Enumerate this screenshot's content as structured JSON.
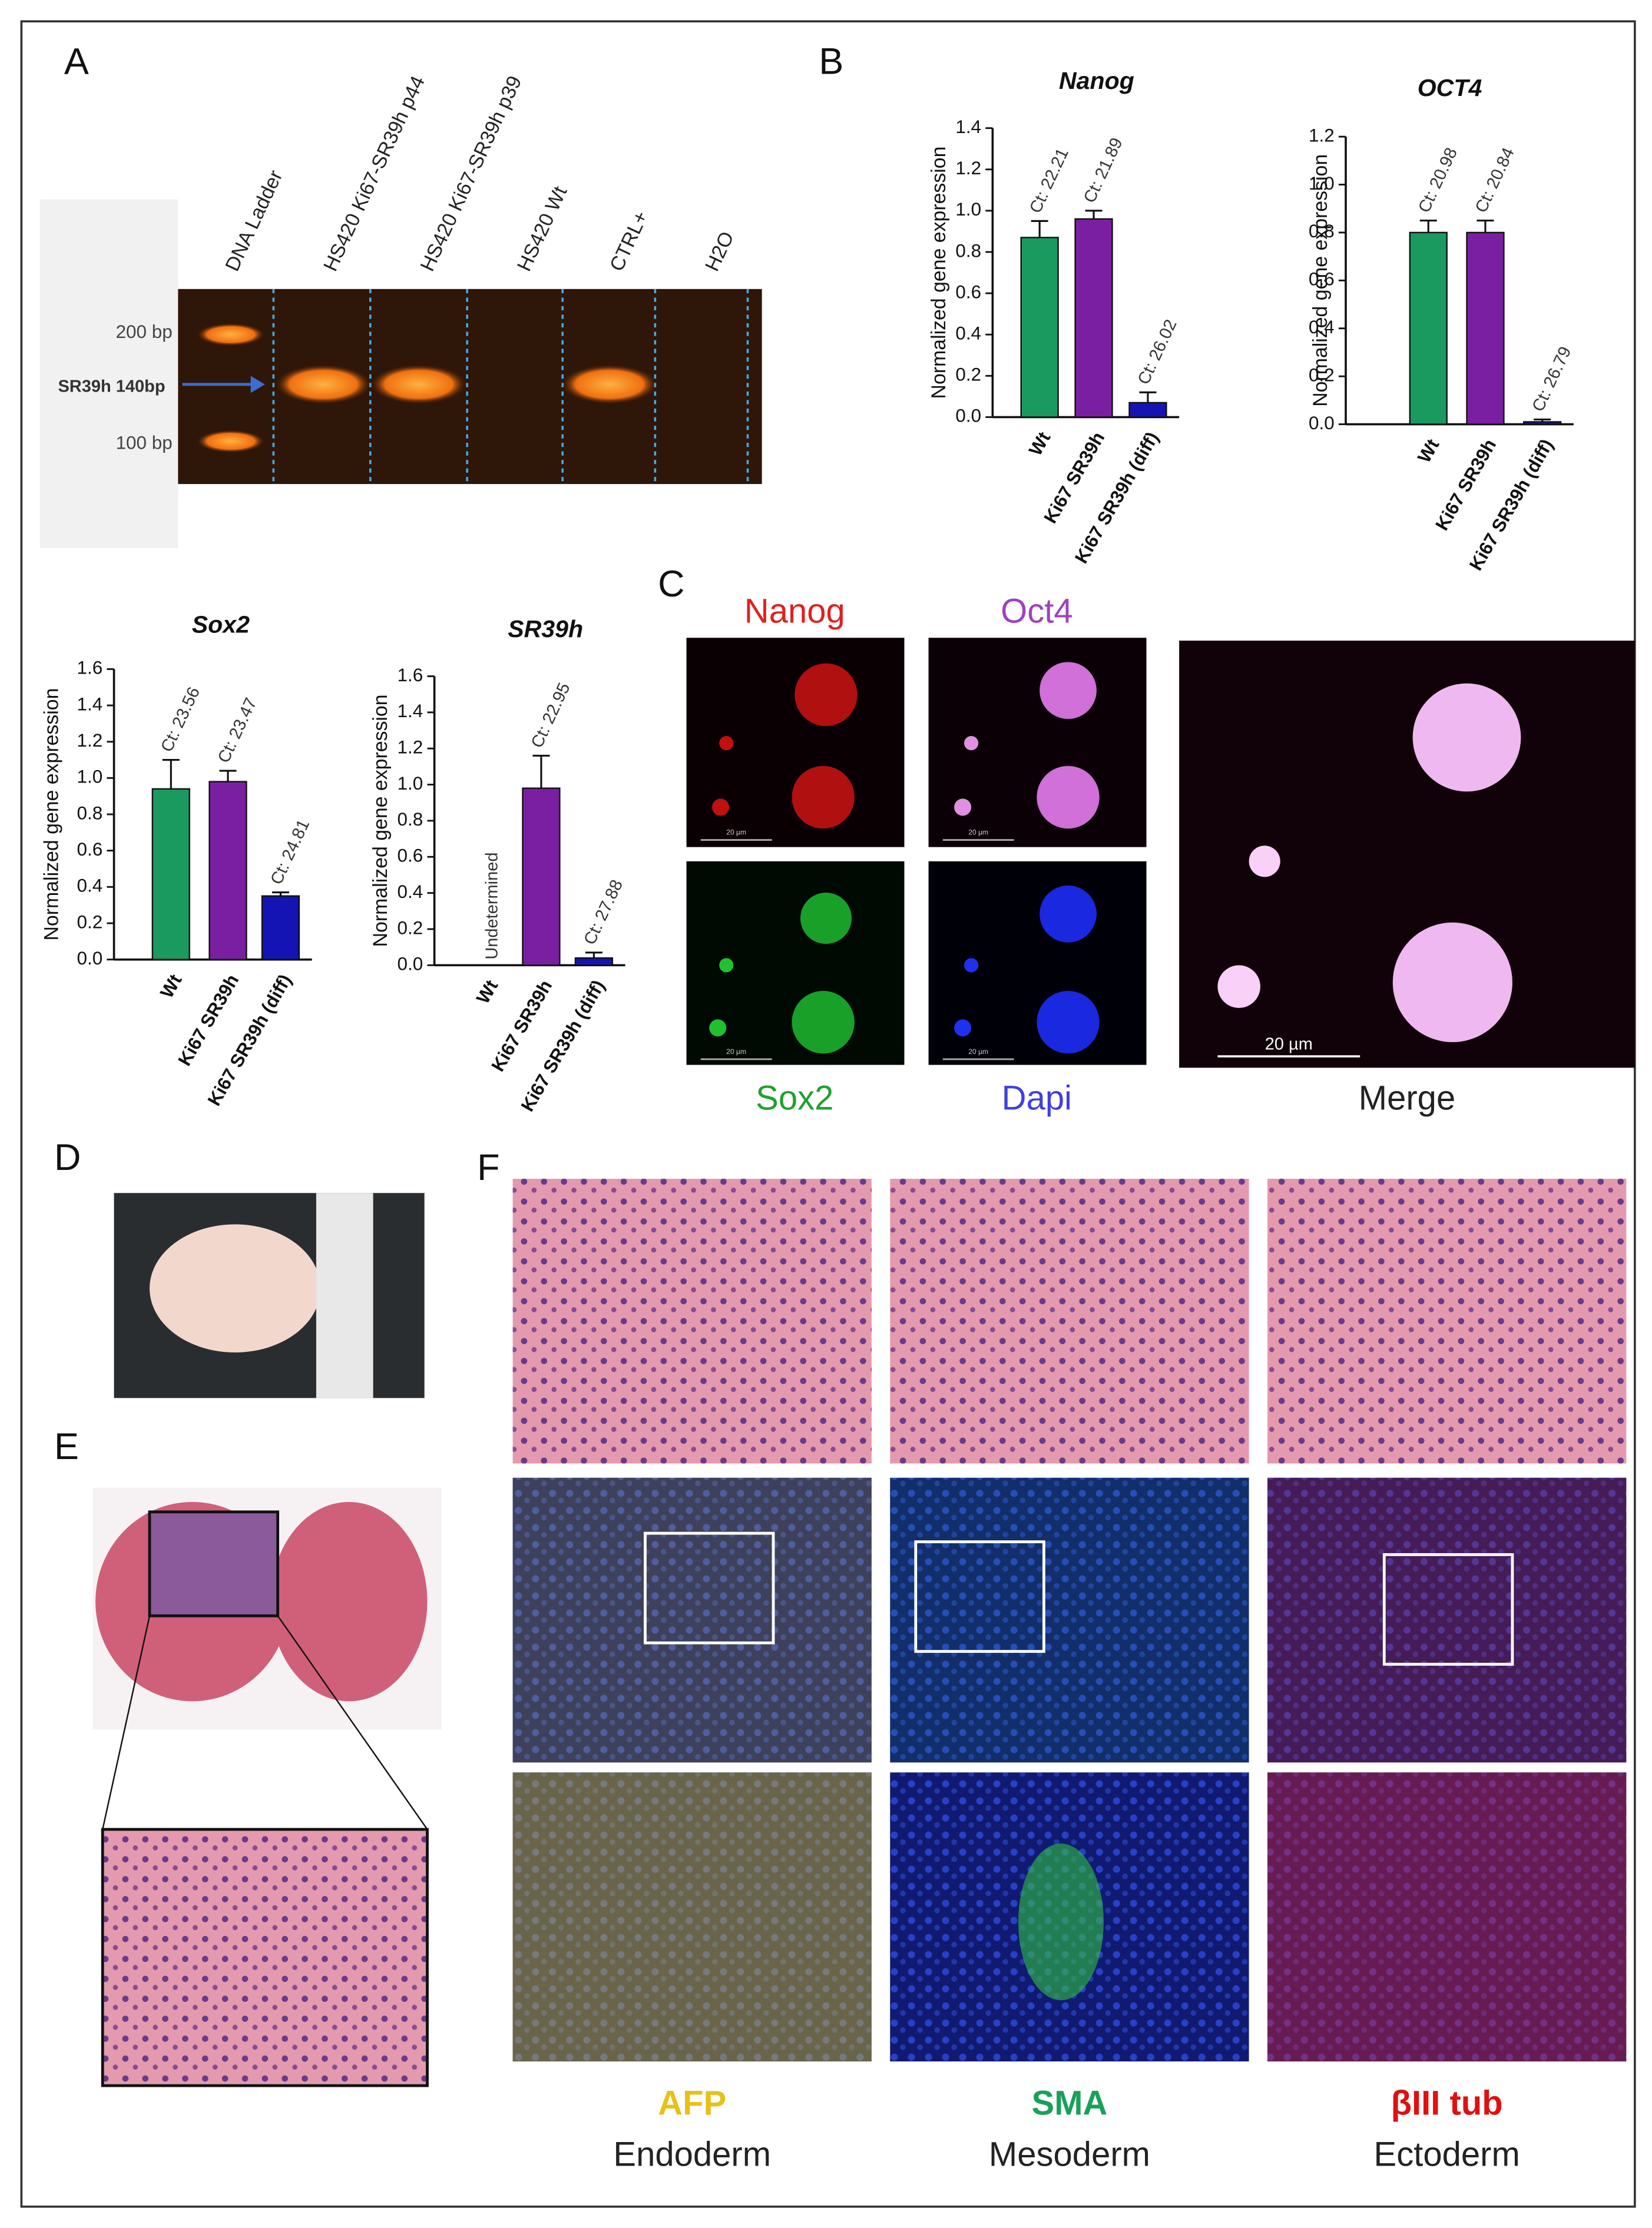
{
  "panel_letters": [
    "A",
    "B",
    "C",
    "D",
    "E",
    "F"
  ],
  "gel": {
    "lanes": [
      "DNA Ladder",
      "HS420 Ki67-SR39h p44",
      "HS420 Ki67-SR39h p39",
      "HS420 Wt",
      "CTRL+",
      "H2O"
    ],
    "markers": [
      "200 bp",
      "100 bp"
    ],
    "band_label": "SR39h 140bp"
  },
  "chart_data": [
    {
      "type": "bar",
      "title": "Nanog",
      "ylabel": "Normalized gene expression",
      "categories": [
        "Wt",
        "Ki67 SR39h",
        "Ki67 SR39h (diff)"
      ],
      "values": [
        0.87,
        0.96,
        0.07
      ],
      "errors": [
        0.08,
        0.04,
        0.05
      ],
      "annotations": [
        "Ct: 22.21",
        "Ct: 21.89",
        "Ct: 26.02"
      ],
      "colors": [
        "#1a9a5e",
        "#7b1fa2",
        "#1414b4"
      ],
      "ylim": [
        0,
        1.4
      ],
      "yticks": [
        {
          "value": 0,
          "label": "0.0"
        },
        0.2,
        0.4,
        0.6,
        0.8,
        {
          "value": 1,
          "label": "1.0"
        },
        1.2,
        1.4
      ]
    },
    {
      "type": "bar",
      "title": "OCT4",
      "ylabel": "Normalized gene expression",
      "categories": [
        "Wt",
        "Ki67 SR39h",
        "Ki67 SR39h (diff)"
      ],
      "values": [
        0.8,
        0.8,
        0.01
      ],
      "errors": [
        0.05,
        0.05,
        0.01
      ],
      "annotations": [
        "Ct: 20.98",
        "Ct: 20.84",
        "Ct: 26.79"
      ],
      "colors": [
        "#1a9a5e",
        "#7b1fa2",
        "#1414b4"
      ],
      "ylim": [
        0,
        1.2
      ],
      "yticks": [
        {
          "value": 0,
          "label": "0.0"
        },
        0.2,
        0.4,
        0.6,
        0.8,
        {
          "value": 1,
          "label": "1.0"
        },
        1.2
      ]
    },
    {
      "type": "bar",
      "title": "Sox2",
      "ylabel": "Normalized gene expression",
      "categories": [
        "Wt",
        "Ki67 SR39h",
        "Ki67 SR39h (diff)"
      ],
      "values": [
        0.94,
        0.98,
        0.35
      ],
      "errors": [
        0.16,
        0.06,
        0.02
      ],
      "annotations": [
        "Ct: 23.56",
        "Ct: 23.47",
        "Ct: 24.81"
      ],
      "colors": [
        "#1a9a5e",
        "#7b1fa2",
        "#1414b4"
      ],
      "ylim": [
        0,
        1.6
      ],
      "yticks": [
        {
          "value": 0,
          "label": "0.0"
        },
        0.2,
        0.4,
        0.6,
        0.8,
        {
          "value": 1,
          "label": "1.0"
        },
        1.2,
        1.4,
        1.6
      ]
    },
    {
      "type": "bar",
      "title": "SR39h",
      "ylabel": "Normalized gene expression",
      "categories": [
        "Wt",
        "Ki67 SR39h",
        "Ki67 SR39h (diff)"
      ],
      "values": [
        null,
        0.98,
        0.04
      ],
      "errors": [
        null,
        0.18,
        0.03
      ],
      "annotations": [
        "Undetermined",
        "Ct: 22.95",
        "Ct: 27.88"
      ],
      "colors": [
        "#1a9a5e",
        "#7b1fa2",
        "#1414b4"
      ],
      "ylim": [
        0,
        1.6
      ],
      "yticks": [
        {
          "value": 0,
          "label": "0.0"
        },
        0.2,
        0.4,
        0.6,
        0.8,
        {
          "value": 1,
          "label": "1.0"
        },
        1.2,
        1.4,
        1.6
      ]
    }
  ],
  "immunofluorescence": {
    "channels": [
      "Nanog",
      "Oct4",
      "Sox2",
      "Dapi"
    ],
    "merge": "Merge",
    "scale_bar": "20 µm"
  },
  "germ_layers": [
    {
      "marker": "AFP",
      "layer": "Endoderm"
    },
    {
      "marker": "SMA",
      "layer": "Mesoderm"
    },
    {
      "marker": "βIII tub",
      "layer": "Ectoderm"
    }
  ]
}
